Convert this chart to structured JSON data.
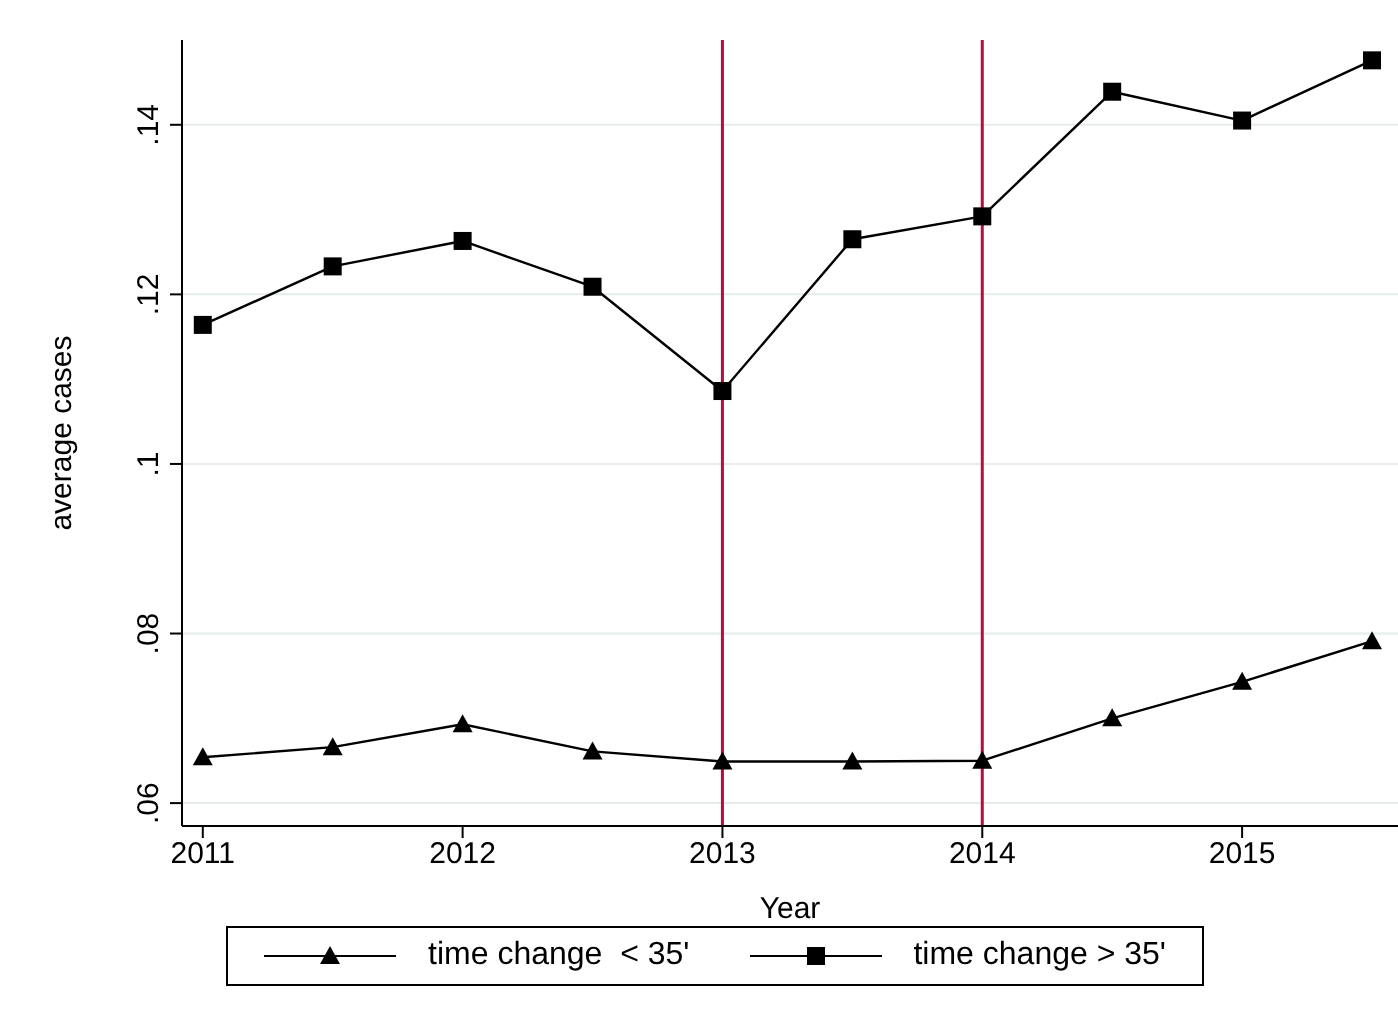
{
  "chart_data": {
    "type": "line",
    "xlabel": "Year",
    "ylabel": "average cases",
    "x": [
      2011,
      2011.5,
      2012,
      2012.5,
      2013,
      2013.5,
      2014,
      2014.5,
      2015,
      2015.5
    ],
    "series": [
      {
        "name": "time change  < 35'",
        "color": "#000000",
        "marker": "triangle",
        "values": [
          0.0654,
          0.0666,
          0.0693,
          0.0661,
          0.0649,
          0.0649,
          0.065,
          0.07,
          0.0743,
          0.0791
        ]
      },
      {
        "name": "time change > 35'",
        "color": "#000000",
        "marker": "square",
        "values": [
          0.1164,
          0.1233,
          0.1263,
          0.1209,
          0.1086,
          0.1265,
          0.1292,
          0.1439,
          0.1405,
          0.1476
        ]
      }
    ],
    "xlim": [
      2010.92,
      2015.6
    ],
    "xticks": [
      2011,
      2012,
      2013,
      2014,
      2015
    ],
    "ylim": [
      0.0573,
      0.15
    ],
    "yticks": [
      {
        "value": 0.06,
        "label": ".06"
      },
      {
        "value": 0.08,
        "label": ".08"
      },
      {
        "value": 0.1,
        "label": ".1"
      },
      {
        "value": 0.12,
        "label": ".12"
      },
      {
        "value": 0.14,
        "label": ".14"
      }
    ],
    "ref_lines": [
      {
        "axis": "x",
        "value": 2013,
        "color": "#a8163e"
      },
      {
        "axis": "x",
        "value": 2014,
        "color": "#a8163e"
      }
    ],
    "grid": "y",
    "legend": "bottom",
    "line_style": "solid"
  }
}
